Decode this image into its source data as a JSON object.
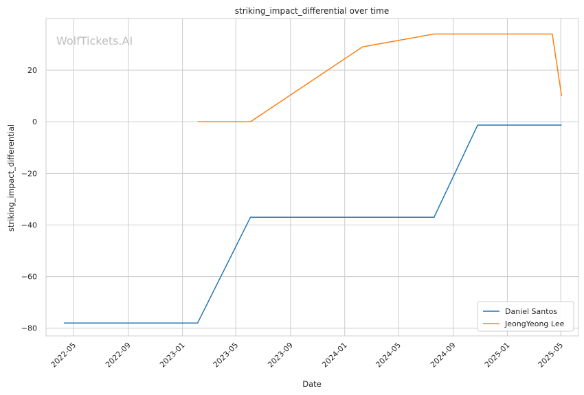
{
  "watermark": "WolfTickets.AI",
  "colors": {
    "Daniel Santos": "#1f77b4",
    "JeongYeong Lee": "#ff7f0e",
    "grid": "#cccccc",
    "frame": "#cccccc"
  },
  "chart_data": {
    "type": "line",
    "title": "striking_impact_differential over time",
    "xlabel": "Date",
    "ylabel": "striking_impact_differential",
    "x_ticks": [
      "2022-05",
      "2022-09",
      "2023-01",
      "2023-05",
      "2023-09",
      "2024-01",
      "2024-05",
      "2024-09",
      "2025-01",
      "2025-05"
    ],
    "y_ticks": [
      -80,
      -60,
      -40,
      -20,
      0,
      20
    ],
    "xlim": [
      "2022-02-28",
      "2025-06-10"
    ],
    "ylim": [
      -83,
      40
    ],
    "grid": true,
    "legend_position": "lower right",
    "series": [
      {
        "name": "Daniel Santos",
        "points": [
          {
            "x": "2022-04-09",
            "y": -78
          },
          {
            "x": "2023-02-04",
            "y": -78
          },
          {
            "x": "2023-06-03",
            "y": -37
          },
          {
            "x": "2024-07-20",
            "y": -37
          },
          {
            "x": "2024-10-26",
            "y": -1.3
          },
          {
            "x": "2025-05-03",
            "y": -1.3
          }
        ]
      },
      {
        "name": "JeongYeong Lee",
        "points": [
          {
            "x": "2023-02-04",
            "y": 0
          },
          {
            "x": "2023-06-03",
            "y": 0
          },
          {
            "x": "2024-02-10",
            "y": 29
          },
          {
            "x": "2024-07-20",
            "y": 34
          },
          {
            "x": "2025-04-12",
            "y": 34
          },
          {
            "x": "2025-05-03",
            "y": 10
          }
        ]
      }
    ]
  }
}
